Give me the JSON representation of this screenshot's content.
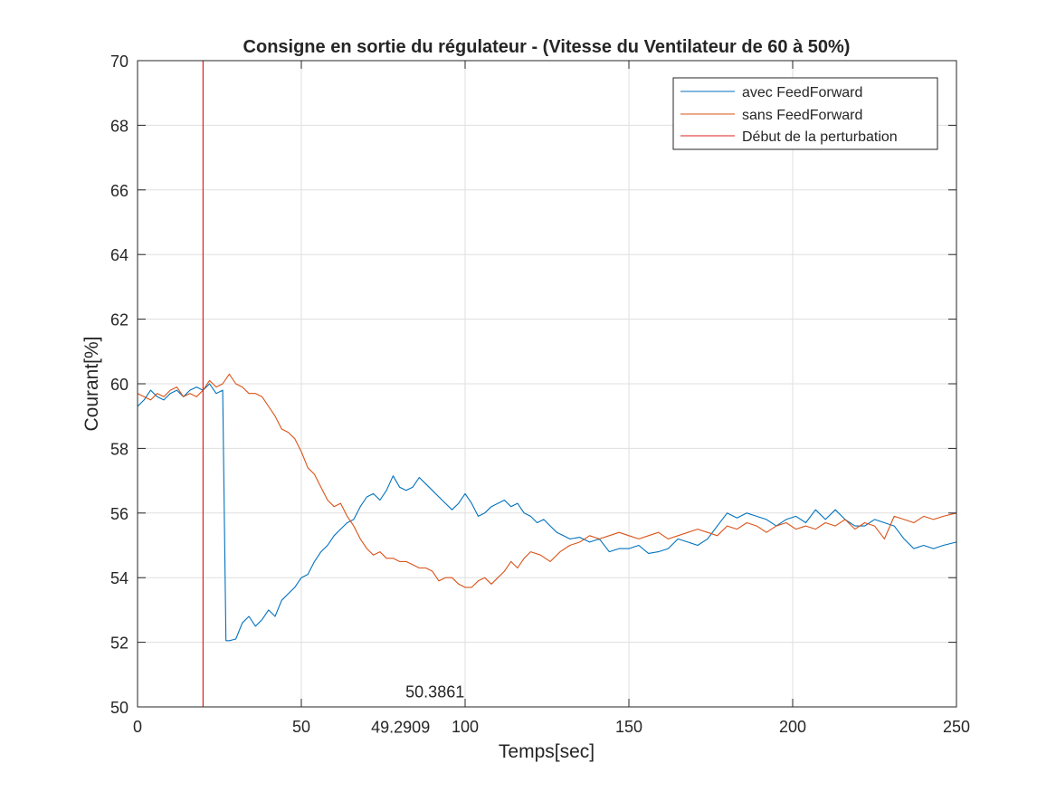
{
  "chart_data": {
    "type": "line",
    "title": "Consigne en sortie du régulateur - (Vitesse du Ventilateur de 60 à 50%)",
    "xlabel": "Temps[sec]",
    "ylabel": "Courant[%]",
    "xlim": [
      0,
      250
    ],
    "ylim": [
      50,
      70
    ],
    "xticks": [
      0,
      50,
      100,
      150,
      200,
      250
    ],
    "yticks": [
      50,
      52,
      54,
      56,
      58,
      60,
      62,
      64,
      66,
      68,
      70
    ],
    "grid": true,
    "legend_position": "top-right",
    "series": [
      {
        "name": "avec FeedForward",
        "color": "#0072BD",
        "x": [
          0,
          2,
          4,
          6,
          8,
          10,
          12,
          14,
          16,
          18,
          20,
          22,
          24,
          26,
          27,
          28,
          30,
          32,
          34,
          36,
          38,
          40,
          42,
          44,
          46,
          48,
          50,
          52,
          54,
          56,
          58,
          60,
          62,
          64,
          66,
          68,
          70,
          72,
          74,
          76,
          78,
          80,
          82,
          84,
          86,
          88,
          90,
          92,
          94,
          96,
          98,
          100,
          102,
          104,
          106,
          108,
          110,
          112,
          114,
          116,
          118,
          120,
          122,
          124,
          126,
          128,
          130,
          132,
          135,
          138,
          141,
          144,
          147,
          150,
          153,
          156,
          159,
          162,
          165,
          168,
          171,
          174,
          177,
          180,
          183,
          186,
          189,
          192,
          195,
          198,
          201,
          204,
          207,
          210,
          213,
          216,
          219,
          222,
          225,
          228,
          231,
          234,
          237,
          240,
          243,
          246,
          250
        ],
        "y": [
          59.3,
          59.5,
          59.8,
          59.6,
          59.5,
          59.7,
          59.8,
          59.6,
          59.8,
          59.9,
          59.8,
          60.0,
          59.7,
          59.8,
          52.05,
          52.05,
          52.1,
          52.6,
          52.8,
          52.5,
          52.7,
          53.0,
          52.8,
          53.3,
          53.5,
          53.7,
          54.0,
          54.1,
          54.5,
          54.8,
          55.0,
          55.3,
          55.5,
          55.7,
          55.8,
          56.2,
          56.5,
          56.6,
          56.4,
          56.7,
          57.15,
          56.8,
          56.7,
          56.8,
          57.1,
          56.9,
          56.7,
          56.5,
          56.3,
          56.1,
          56.3,
          56.6,
          56.3,
          55.9,
          56.0,
          56.2,
          56.3,
          56.4,
          56.2,
          56.3,
          56.0,
          55.9,
          55.7,
          55.8,
          55.6,
          55.4,
          55.3,
          55.2,
          55.25,
          55.1,
          55.2,
          54.8,
          54.9,
          54.9,
          55.0,
          54.75,
          54.8,
          54.9,
          55.2,
          55.1,
          55.0,
          55.2,
          55.6,
          56.0,
          55.85,
          56.0,
          55.9,
          55.8,
          55.6,
          55.8,
          55.9,
          55.7,
          56.1,
          55.8,
          56.1,
          55.8,
          55.6,
          55.6,
          55.8,
          55.7,
          55.6,
          55.2,
          54.9,
          55.0,
          54.9,
          55.0,
          55.1
        ]
      },
      {
        "name": "sans FeedForward",
        "color": "#D95319",
        "x": [
          0,
          2,
          4,
          6,
          8,
          10,
          12,
          14,
          16,
          18,
          20,
          22,
          24,
          26,
          28,
          30,
          32,
          34,
          36,
          38,
          40,
          42,
          44,
          46,
          48,
          50,
          52,
          54,
          56,
          58,
          60,
          62,
          64,
          66,
          68,
          70,
          72,
          74,
          76,
          78,
          80,
          82,
          84,
          86,
          88,
          90,
          92,
          94,
          96,
          98,
          100,
          102,
          104,
          106,
          108,
          110,
          112,
          114,
          116,
          118,
          120,
          123,
          126,
          129,
          132,
          135,
          138,
          141,
          144,
          147,
          150,
          153,
          156,
          159,
          162,
          165,
          168,
          171,
          174,
          177,
          180,
          183,
          186,
          189,
          192,
          195,
          198,
          201,
          204,
          207,
          210,
          213,
          216,
          219,
          222,
          225,
          228,
          231,
          234,
          237,
          240,
          243,
          246,
          250
        ],
        "y": [
          59.7,
          59.6,
          59.5,
          59.7,
          59.6,
          59.8,
          59.9,
          59.6,
          59.7,
          59.6,
          59.8,
          60.1,
          59.9,
          60.0,
          60.3,
          60.0,
          59.9,
          59.7,
          59.7,
          59.6,
          59.3,
          59.0,
          58.6,
          58.5,
          58.3,
          57.9,
          57.4,
          57.2,
          56.8,
          56.4,
          56.2,
          56.3,
          55.9,
          55.6,
          55.2,
          54.9,
          54.7,
          54.8,
          54.6,
          54.6,
          54.5,
          54.5,
          54.4,
          54.3,
          54.3,
          54.2,
          53.9,
          54.0,
          54.0,
          53.8,
          53.7,
          53.7,
          53.9,
          54.0,
          53.8,
          54.0,
          54.2,
          54.5,
          54.3,
          54.6,
          54.8,
          54.7,
          54.5,
          54.8,
          55.0,
          55.1,
          55.3,
          55.2,
          55.3,
          55.4,
          55.3,
          55.2,
          55.3,
          55.4,
          55.2,
          55.3,
          55.4,
          55.5,
          55.4,
          55.3,
          55.6,
          55.5,
          55.7,
          55.6,
          55.4,
          55.6,
          55.7,
          55.5,
          55.6,
          55.5,
          55.7,
          55.6,
          55.8,
          55.5,
          55.7,
          55.6,
          55.2,
          55.9,
          55.8,
          55.7,
          55.9,
          55.8,
          55.9,
          56.0
        ]
      }
    ],
    "vertical_line": {
      "name": "Début de la perturbation",
      "x": 20,
      "color": "#DD2222"
    },
    "annotations": [
      {
        "text": "50.3861",
        "x": 90.8,
        "y": 50.3
      },
      {
        "text": "49.2909",
        "x": 80.3,
        "y": 49.2
      }
    ]
  }
}
